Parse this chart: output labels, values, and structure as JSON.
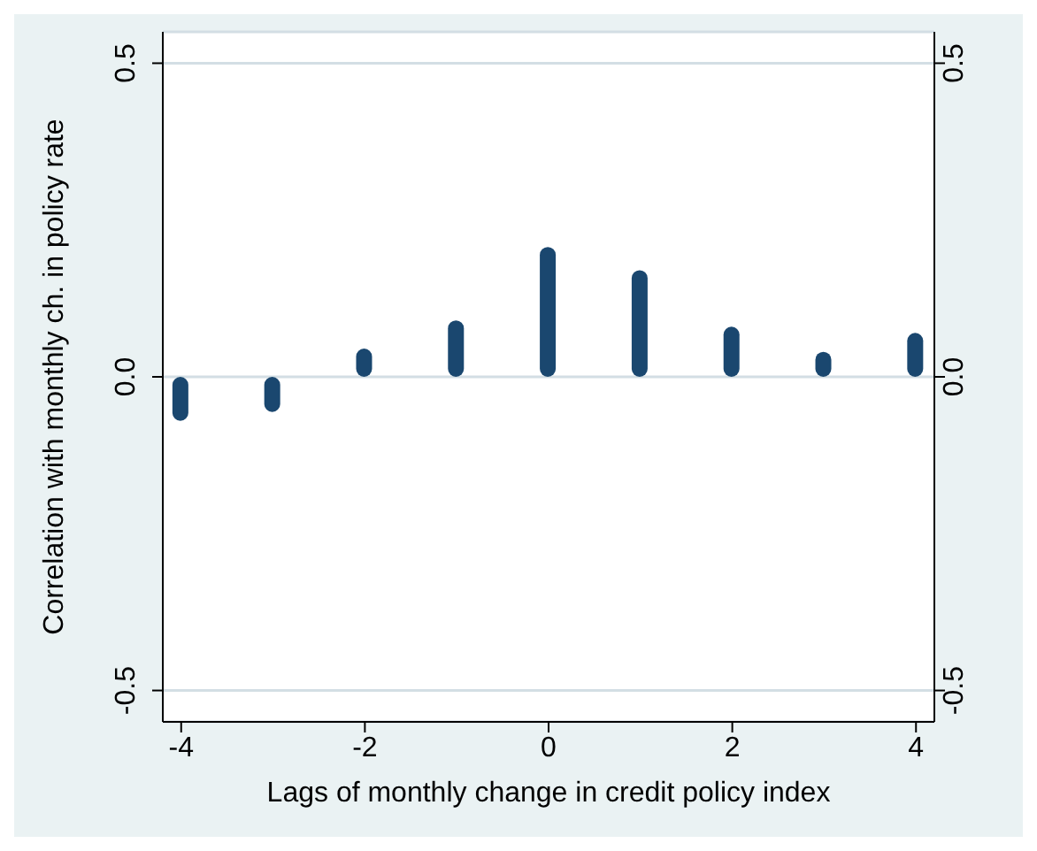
{
  "chart_data": {
    "type": "bar",
    "xlabel": "Lags of monthly change in credit policy index",
    "ylabel": "Correlation with monthly ch. in policy rate",
    "x": [
      -4,
      -3,
      -2,
      -1,
      0,
      1,
      2,
      3,
      4
    ],
    "values": [
      -0.07,
      -0.056,
      0.045,
      0.09,
      0.207,
      0.17,
      0.08,
      0.04,
      0.07
    ],
    "color": "#1a476f",
    "xlim": [
      -4.2,
      4.2
    ],
    "xticks": [
      -4,
      -2,
      0,
      2,
      4
    ],
    "ylim": [
      -0.55,
      0.55
    ],
    "yticks": [
      -0.5,
      {
        "value": 0,
        "label": "0.0"
      },
      0.5
    ],
    "y2lim": [
      -0.55,
      0.55
    ],
    "y2ticks": [
      -0.5,
      {
        "value": 0,
        "label": "0.0"
      },
      0.5
    ],
    "grid": "y"
  }
}
